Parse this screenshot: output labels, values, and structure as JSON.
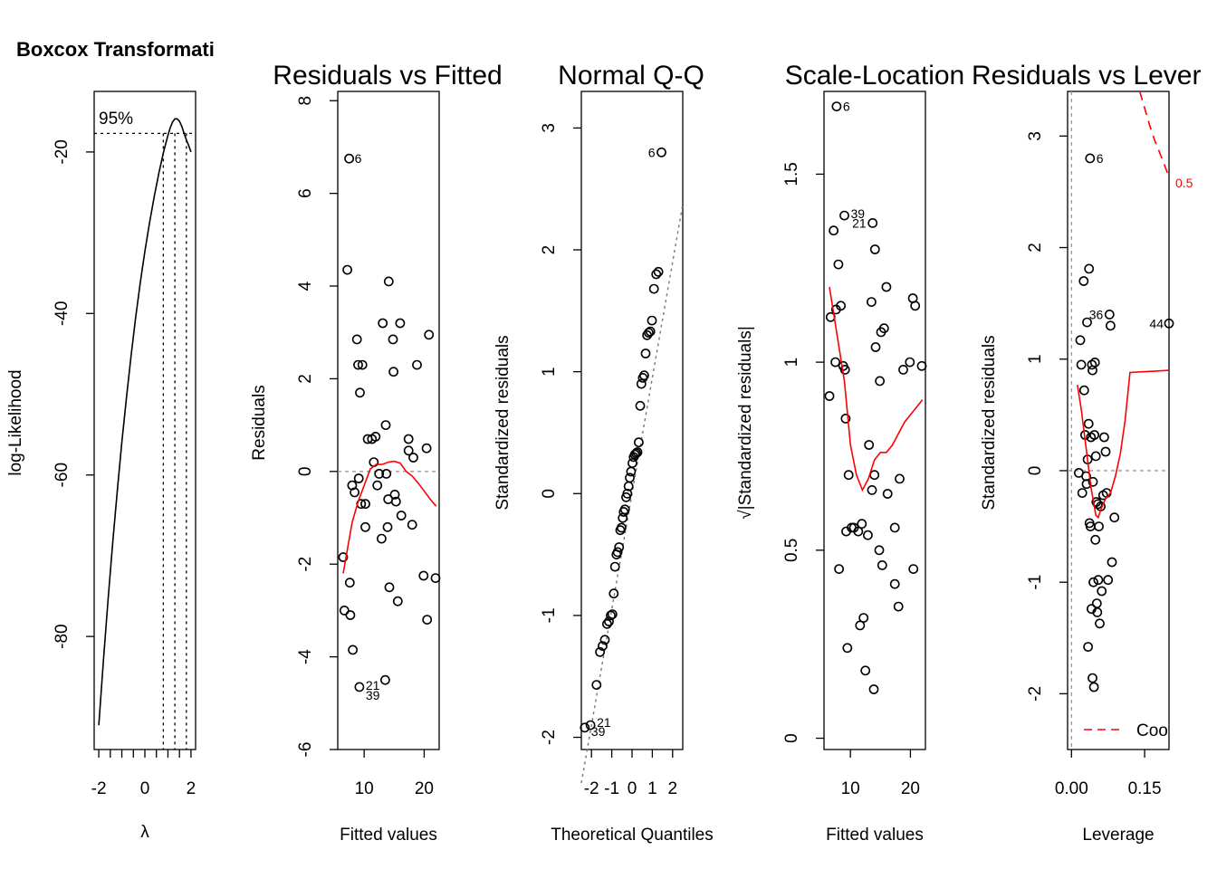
{
  "chart_data": [
    {
      "type": "line",
      "title": "Boxcox Transformati",
      "xlabel": "λ",
      "ylabel": "log-Likelihood",
      "xlim": [
        -2.2,
        2.2
      ],
      "ylim": [
        -94,
        -12.5
      ],
      "xticks": [
        -2,
        0,
        2
      ],
      "xticks_minor": [
        -1.5,
        -1,
        -0.5,
        0.5,
        1,
        1.5
      ],
      "yticks": [
        -20,
        -40,
        -60,
        -80
      ],
      "ci_label": "95%",
      "ci_level": -17.7,
      "ci_lambdas": [
        0.8,
        1.3,
        1.8
      ],
      "curve": {
        "x": [
          -2,
          -1.8,
          -1.6,
          -1.4,
          -1.2,
          -1,
          -0.8,
          -0.6,
          -0.4,
          -0.2,
          0,
          0.2,
          0.4,
          0.6,
          0.8,
          1,
          1.1,
          1.2,
          1.3,
          1.4,
          1.5,
          1.6,
          1.7,
          1.8,
          1.9,
          2
        ],
        "y": [
          -91,
          -83,
          -75.5,
          -68.5,
          -62,
          -56,
          -50.5,
          -45.3,
          -40.5,
          -36.2,
          -32.3,
          -28.8,
          -25.6,
          -22.7,
          -20.1,
          -17.9,
          -17.0,
          -16.3,
          -15.9,
          -15.9,
          -16.2,
          -16.8,
          -17.7,
          -18.5,
          -19.2,
          -20
        ]
      }
    },
    {
      "type": "scatter",
      "title": "Residuals vs Fitted",
      "xlabel": "Fitted values",
      "ylabel": "Residuals",
      "xlim": [
        5.6,
        22.5
      ],
      "ylim": [
        -6,
        8.2
      ],
      "xticks": [
        10,
        20
      ],
      "yticks": [
        -6,
        -4,
        -2,
        0,
        2,
        4,
        6,
        8
      ],
      "reference_line": 0,
      "points": [
        [
          6.5,
          -1.85
        ],
        [
          6.7,
          -3.0
        ],
        [
          7.2,
          4.35
        ],
        [
          7.5,
          6.75
        ],
        [
          7.6,
          -2.4
        ],
        [
          7.7,
          -3.1
        ],
        [
          8.0,
          -0.3
        ],
        [
          8.1,
          -3.85
        ],
        [
          8.4,
          -0.45
        ],
        [
          8.8,
          2.85
        ],
        [
          9.0,
          2.3
        ],
        [
          9.1,
          -0.15
        ],
        [
          9.2,
          -4.65
        ],
        [
          9.3,
          1.7
        ],
        [
          9.5,
          -0.7
        ],
        [
          9.7,
          2.3
        ],
        [
          10.2,
          -0.7
        ],
        [
          10.2,
          -1.2
        ],
        [
          10.6,
          0.7
        ],
        [
          11.3,
          0.7
        ],
        [
          11.6,
          0.2
        ],
        [
          11.9,
          0.75
        ],
        [
          12.2,
          -0.3
        ],
        [
          12.5,
          -0.05
        ],
        [
          12.9,
          -1.45
        ],
        [
          13.1,
          3.2
        ],
        [
          13.5,
          -4.5
        ],
        [
          13.6,
          1.0
        ],
        [
          13.7,
          -0.05
        ],
        [
          13.9,
          -1.2
        ],
        [
          14.0,
          -0.6
        ],
        [
          14.1,
          4.1
        ],
        [
          14.2,
          -2.5
        ],
        [
          14.8,
          2.85
        ],
        [
          14.9,
          2.15
        ],
        [
          15.1,
          -0.5
        ],
        [
          15.3,
          -0.65
        ],
        [
          15.6,
          -2.8
        ],
        [
          16.0,
          3.2
        ],
        [
          16.2,
          -0.95
        ],
        [
          17.4,
          0.7
        ],
        [
          17.4,
          0.45
        ],
        [
          18.0,
          -1.15
        ],
        [
          18.2,
          0.3
        ],
        [
          18.8,
          2.3
        ],
        [
          19.9,
          -2.25
        ],
        [
          20.4,
          0.5
        ],
        [
          20.5,
          -3.2
        ],
        [
          20.8,
          2.95
        ],
        [
          21.9,
          -2.3
        ]
      ],
      "point_labels": [
        {
          "label": "6",
          "x": 7.5,
          "y": 6.75
        },
        {
          "label": "21",
          "x": 9.2,
          "y": -4.65
        },
        {
          "label": "39",
          "x": 9.2,
          "y": -4.65
        }
      ],
      "smooth": {
        "x": [
          6.5,
          8,
          9,
          10,
          11,
          12,
          13,
          14,
          15,
          16,
          17,
          18,
          19,
          20,
          21,
          22
        ],
        "y": [
          -2.2,
          -1.1,
          -0.65,
          -0.3,
          0.05,
          0.15,
          0.15,
          0.2,
          0.22,
          0.18,
          0.0,
          -0.1,
          -0.25,
          -0.42,
          -0.6,
          -0.75
        ]
      }
    },
    {
      "type": "scatter",
      "title": "Normal Q-Q",
      "xlabel": "Theoretical Quantiles",
      "ylabel": "Standardized residuals",
      "xlim": [
        -2.5,
        2.5
      ],
      "ylim": [
        -2.1,
        3.3
      ],
      "xticks": [
        -2,
        -1,
        0,
        1,
        2
      ],
      "yticks": [
        -2,
        -1,
        0,
        1,
        2,
        3
      ],
      "reference_line": {
        "slope": 0.95,
        "intercept": 0.0
      },
      "points": [
        [
          -2.33,
          -1.92
        ],
        [
          -2.05,
          -1.9
        ],
        [
          -1.75,
          -1.57
        ],
        [
          -1.58,
          -1.3
        ],
        [
          -1.45,
          -1.25
        ],
        [
          -1.34,
          -1.2
        ],
        [
          -1.23,
          -1.07
        ],
        [
          -1.14,
          -1.05
        ],
        [
          -1.05,
          -1.0
        ],
        [
          -0.97,
          -0.99
        ],
        [
          -0.9,
          -0.82
        ],
        [
          -0.84,
          -0.6
        ],
        [
          -0.77,
          -0.5
        ],
        [
          -0.71,
          -0.48
        ],
        [
          -0.64,
          -0.44
        ],
        [
          -0.58,
          -0.3
        ],
        [
          -0.52,
          -0.28
        ],
        [
          -0.46,
          -0.2
        ],
        [
          -0.41,
          -0.15
        ],
        [
          -0.35,
          -0.13
        ],
        [
          -0.29,
          -0.03
        ],
        [
          -0.23,
          0.0
        ],
        [
          -0.17,
          0.06
        ],
        [
          -0.11,
          0.13
        ],
        [
          -0.05,
          0.18
        ],
        [
          0.02,
          0.25
        ],
        [
          0.08,
          0.3
        ],
        [
          0.14,
          0.32
        ],
        [
          0.2,
          0.33
        ],
        [
          0.27,
          0.34
        ],
        [
          0.33,
          0.42
        ],
        [
          0.4,
          0.72
        ],
        [
          0.46,
          0.9
        ],
        [
          0.53,
          0.95
        ],
        [
          0.6,
          0.97
        ],
        [
          0.67,
          1.15
        ],
        [
          0.74,
          1.3
        ],
        [
          0.82,
          1.32
        ],
        [
          0.9,
          1.33
        ],
        [
          0.98,
          1.42
        ],
        [
          1.08,
          1.68
        ],
        [
          1.19,
          1.8
        ],
        [
          1.3,
          1.82
        ],
        [
          1.45,
          2.8
        ]
      ],
      "point_labels": [
        {
          "label": "6",
          "x": 1.45,
          "y": 2.8
        },
        {
          "label": "21",
          "x": -2.05,
          "y": -1.9
        },
        {
          "label": "39",
          "x": -2.33,
          "y": -1.92
        }
      ]
    },
    {
      "type": "scatter",
      "title": "Scale-Location",
      "xlabel": "Fitted values",
      "ylabel": "√|Standardized residuals|",
      "xlim": [
        5.6,
        22.5
      ],
      "ylim": [
        -0.03,
        1.72
      ],
      "xticks": [
        10,
        20
      ],
      "yticks": [
        0.0,
        0.5,
        1.0,
        1.5
      ],
      "points": [
        [
          6.5,
          0.91
        ],
        [
          6.7,
          1.12
        ],
        [
          7.2,
          1.35
        ],
        [
          7.5,
          1.0
        ],
        [
          7.6,
          1.14
        ],
        [
          7.7,
          1.68
        ],
        [
          8.0,
          1.26
        ],
        [
          8.1,
          0.45
        ],
        [
          8.4,
          1.15
        ],
        [
          8.8,
          0.99
        ],
        [
          9.0,
          1.39
        ],
        [
          9.1,
          0.98
        ],
        [
          9.2,
          0.85
        ],
        [
          9.3,
          0.55
        ],
        [
          9.5,
          0.24
        ],
        [
          9.7,
          0.7
        ],
        [
          10.2,
          0.56
        ],
        [
          10.6,
          0.56
        ],
        [
          11.3,
          0.55
        ],
        [
          11.6,
          0.3
        ],
        [
          11.9,
          0.57
        ],
        [
          12.2,
          0.32
        ],
        [
          12.5,
          0.18
        ],
        [
          12.9,
          0.54
        ],
        [
          13.1,
          0.78
        ],
        [
          13.5,
          1.16
        ],
        [
          13.6,
          0.66
        ],
        [
          13.7,
          1.37
        ],
        [
          13.9,
          0.13
        ],
        [
          14.0,
          0.7
        ],
        [
          14.1,
          1.3
        ],
        [
          14.2,
          1.04
        ],
        [
          14.8,
          0.5
        ],
        [
          14.9,
          0.95
        ],
        [
          15.1,
          1.08
        ],
        [
          15.3,
          0.46
        ],
        [
          15.6,
          1.09
        ],
        [
          16.0,
          1.2
        ],
        [
          16.2,
          0.65
        ],
        [
          17.4,
          0.41
        ],
        [
          17.4,
          0.56
        ],
        [
          18.0,
          0.35
        ],
        [
          18.2,
          0.69
        ],
        [
          18.8,
          0.98
        ],
        [
          19.9,
          1.0
        ],
        [
          20.4,
          1.17
        ],
        [
          20.5,
          0.45
        ],
        [
          20.8,
          1.15
        ],
        [
          21.9,
          0.99
        ]
      ],
      "point_labels": [
        {
          "label": "6",
          "x": 7.7,
          "y": 1.68
        },
        {
          "label": "39",
          "x": 9.0,
          "y": 1.39
        },
        {
          "label": "21",
          "x": 13.7,
          "y": 1.37
        }
      ],
      "smooth": {
        "x": [
          6.5,
          7,
          8,
          9,
          10,
          11,
          12,
          13,
          14,
          15,
          16,
          17,
          18,
          19,
          20,
          21,
          22
        ],
        "y": [
          1.2,
          1.15,
          1.05,
          0.95,
          0.78,
          0.7,
          0.66,
          0.69,
          0.74,
          0.76,
          0.76,
          0.78,
          0.81,
          0.84,
          0.86,
          0.88,
          0.9
        ]
      }
    },
    {
      "type": "scatter",
      "title": "Residuals vs Lever",
      "xlabel": "Leverage",
      "ylabel": "Standardized residuals",
      "xlim": [
        -0.008,
        0.2
      ],
      "ylim": [
        -2.5,
        3.4
      ],
      "xticks": [
        "0.00",
        "0.15"
      ],
      "yticks": [
        -2,
        -1,
        0,
        1,
        2,
        3
      ],
      "reference_line": 0,
      "cooks_label": "0.5",
      "legend": {
        "entries": [
          {
            "label": "Coo",
            "color": "#ff0000",
            "dash": true
          }
        ],
        "position": "bottom-right"
      },
      "points": [
        [
          0.015,
          -0.02
        ],
        [
          0.018,
          1.17
        ],
        [
          0.02,
          0.95
        ],
        [
          0.022,
          -0.2
        ],
        [
          0.025,
          1.7
        ],
        [
          0.026,
          0.72
        ],
        [
          0.028,
          0.32
        ],
        [
          0.03,
          -0.05
        ],
        [
          0.031,
          -0.12
        ],
        [
          0.032,
          1.33
        ],
        [
          0.033,
          0.1
        ],
        [
          0.034,
          -1.58
        ],
        [
          0.035,
          0.42
        ],
        [
          0.036,
          1.81
        ],
        [
          0.037,
          -0.47
        ],
        [
          0.038,
          2.8
        ],
        [
          0.039,
          -0.5
        ],
        [
          0.04,
          0.3
        ],
        [
          0.041,
          -1.24
        ],
        [
          0.042,
          0.95
        ],
        [
          0.043,
          0.9
        ],
        [
          0.043,
          -1.86
        ],
        [
          0.044,
          -0.1
        ],
        [
          0.045,
          -1.0
        ],
        [
          0.046,
          -1.94
        ],
        [
          0.047,
          0.32
        ],
        [
          0.048,
          0.97
        ],
        [
          0.049,
          -0.62
        ],
        [
          0.05,
          0.13
        ],
        [
          0.051,
          -0.28
        ],
        [
          0.052,
          -1.19
        ],
        [
          0.053,
          -1.27
        ],
        [
          0.054,
          -0.3
        ],
        [
          0.055,
          -0.98
        ],
        [
          0.056,
          -0.5
        ],
        [
          0.058,
          -1.37
        ],
        [
          0.06,
          -0.32
        ],
        [
          0.062,
          -1.08
        ],
        [
          0.065,
          -0.22
        ],
        [
          0.067,
          0.3
        ],
        [
          0.07,
          0.17
        ],
        [
          0.072,
          -0.2
        ],
        [
          0.075,
          -0.98
        ],
        [
          0.078,
          1.4
        ],
        [
          0.08,
          1.3
        ],
        [
          0.083,
          -0.82
        ],
        [
          0.088,
          -0.42
        ],
        [
          0.2,
          1.32
        ]
      ],
      "point_labels": [
        {
          "label": "6",
          "x": 0.038,
          "y": 2.8
        },
        {
          "label": "36",
          "x": 0.078,
          "y": 1.4
        },
        {
          "label": "44",
          "x": 0.2,
          "y": 1.32
        }
      ],
      "smooth": {
        "x": [
          0.012,
          0.02,
          0.03,
          0.04,
          0.05,
          0.055,
          0.06,
          0.07,
          0.08,
          0.09,
          0.1,
          0.11,
          0.12,
          0.2
        ],
        "y": [
          0.77,
          0.55,
          0.2,
          -0.15,
          -0.4,
          -0.42,
          -0.35,
          -0.25,
          -0.2,
          -0.05,
          0.15,
          0.45,
          0.88,
          0.9
        ]
      },
      "cooks_curve": {
        "x": [
          0.14,
          0.15,
          0.16,
          0.17,
          0.18,
          0.19,
          0.2
        ],
        "y": [
          3.4,
          3.25,
          3.1,
          2.97,
          2.86,
          2.75,
          2.63
        ]
      }
    }
  ]
}
